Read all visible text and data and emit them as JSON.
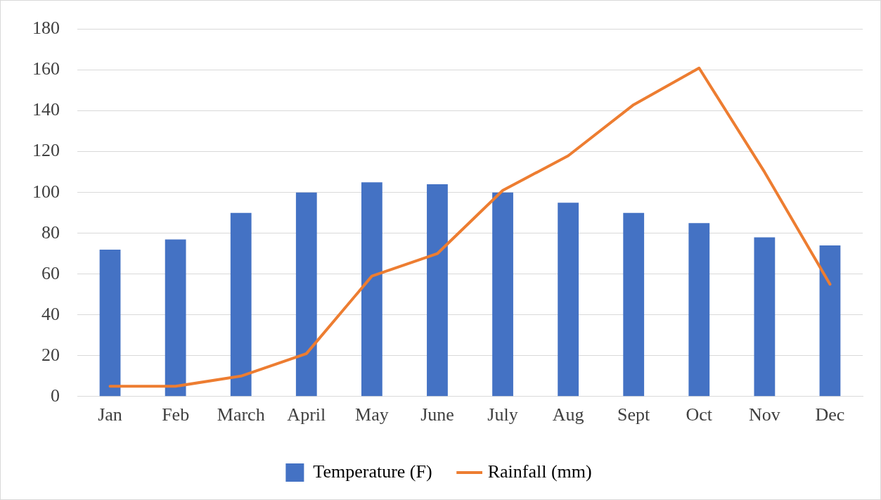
{
  "chart_data": {
    "type": "bar",
    "categories": [
      "Jan",
      "Feb",
      "March",
      "April",
      "May",
      "June",
      "July",
      "Aug",
      "Sept",
      "Oct",
      "Nov",
      "Dec"
    ],
    "series": [
      {
        "name": "Temperature (F)",
        "color": "#4472c4",
        "values": [
          72,
          77,
          90,
          100,
          105,
          104,
          100,
          95,
          90,
          85,
          78,
          74
        ]
      },
      {
        "name": "Rainfall (mm)",
        "type": "line",
        "color": "#ed7d31",
        "values": [
          5,
          5,
          10,
          21,
          59,
          70,
          101,
          118,
          143,
          161,
          110,
          55
        ]
      }
    ],
    "ylim": [
      0,
      180
    ],
    "yticks": [
      0,
      20,
      40,
      60,
      80,
      100,
      120,
      140,
      160,
      180
    ],
    "grid": "y",
    "legend": "bottom",
    "marker": "none",
    "line_style": "solid"
  }
}
